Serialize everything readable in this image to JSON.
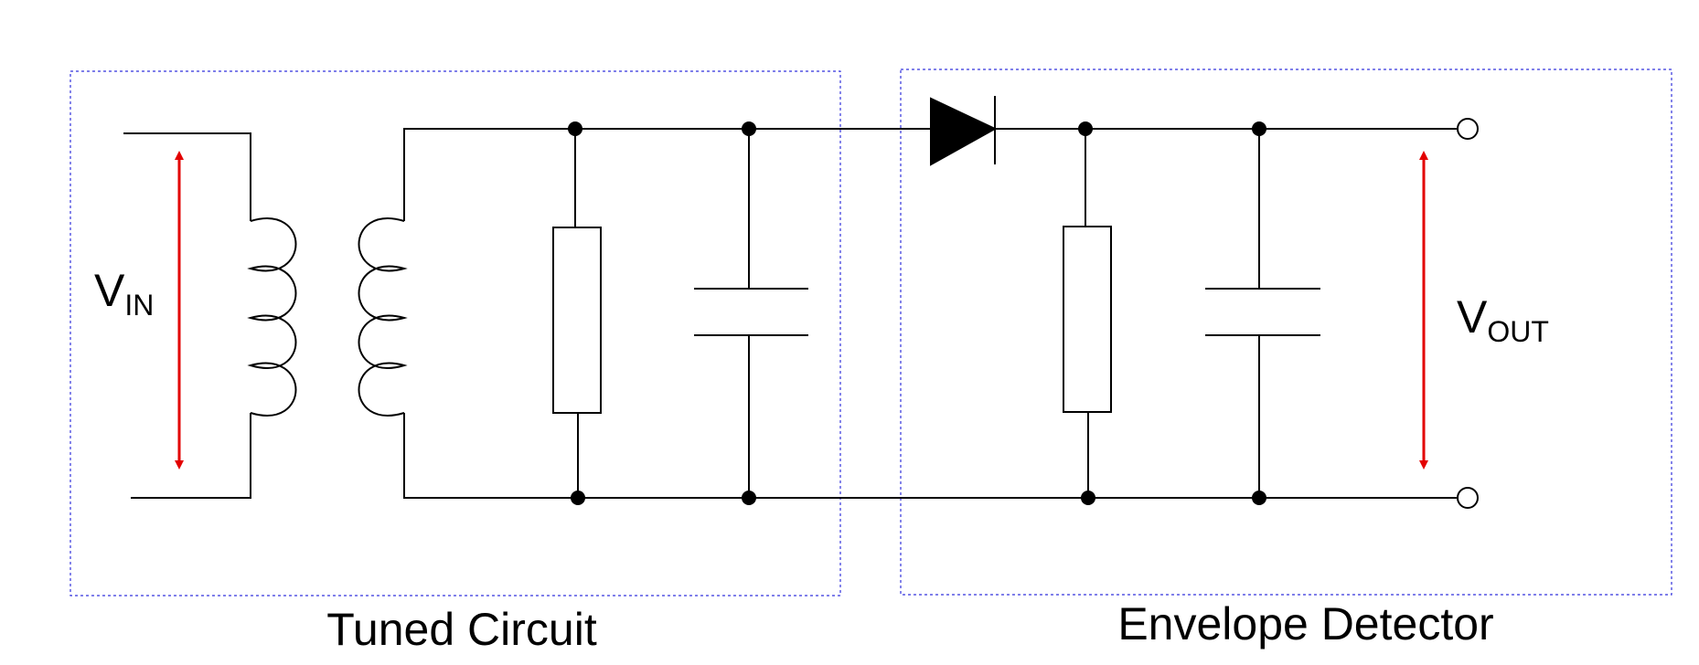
{
  "labels": {
    "vin_main": "V",
    "vin_sub": "IN",
    "vout_main": "V",
    "vout_sub": "OUT"
  },
  "blocks": {
    "tuned": "Tuned Circuit",
    "envelope": "Envelope Detector"
  },
  "colors": {
    "arrow": "#e30000",
    "block_border": "#3333dd",
    "wire": "#000000"
  }
}
